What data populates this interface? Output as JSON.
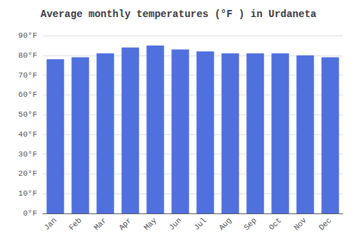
{
  "chart_data": {
    "type": "bar",
    "title": "Average monthly temperatures (°F ) in Urdaneta",
    "categories": [
      "Jan",
      "Feb",
      "Mar",
      "Apr",
      "May",
      "Jun",
      "Jul",
      "Aug",
      "Sep",
      "Oct",
      "Nov",
      "Dec"
    ],
    "values": [
      78,
      79,
      81,
      84,
      85,
      83,
      82,
      81,
      81,
      81,
      80,
      79
    ],
    "ylim": [
      0,
      90
    ],
    "yticks": [
      {
        "value": 0,
        "label": "0°F"
      },
      {
        "value": 10,
        "label": "10°F"
      },
      {
        "value": 20,
        "label": "20°F"
      },
      {
        "value": 30,
        "label": "30°F"
      },
      {
        "value": 40,
        "label": "40°F"
      },
      {
        "value": 50,
        "label": "50°F"
      },
      {
        "value": 60,
        "label": "60°F"
      },
      {
        "value": 70,
        "label": "70°F"
      },
      {
        "value": 80,
        "label": "80°F"
      },
      {
        "value": 90,
        "label": "90°F"
      }
    ],
    "grid": true
  }
}
